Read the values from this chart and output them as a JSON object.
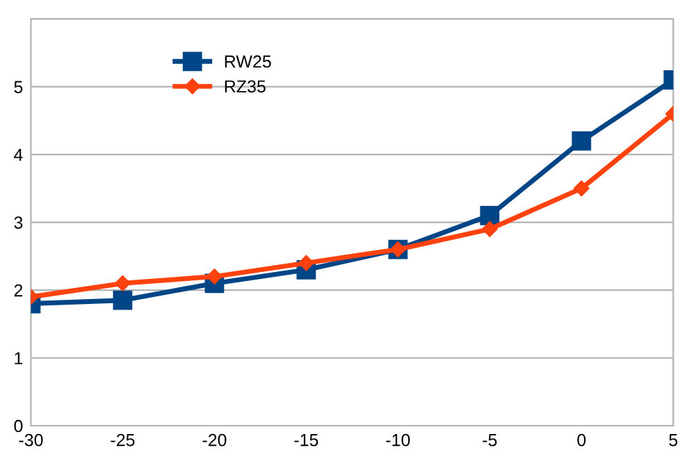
{
  "chart_data": {
    "type": "line",
    "x": [
      -30,
      -25,
      -20,
      -15,
      -10,
      -5,
      0,
      5
    ],
    "series": [
      {
        "name": "RW25",
        "color": "#004586",
        "marker": "square",
        "values": [
          1.8,
          1.85,
          2.1,
          2.3,
          2.6,
          3.1,
          4.2,
          5.1
        ]
      },
      {
        "name": "RZ35",
        "color": "#ff420e",
        "marker": "diamond",
        "values": [
          1.9,
          2.1,
          2.2,
          2.4,
          2.6,
          2.9,
          3.5,
          4.6
        ]
      }
    ],
    "xlim": [
      -30,
      5
    ],
    "xticks": [
      -30,
      -25,
      -20,
      -15,
      -10,
      -5,
      0,
      5
    ],
    "ylim": [
      0,
      6
    ],
    "yticks": [
      0,
      1,
      2,
      3,
      4,
      5,
      {
        "value": 6,
        "label": null
      }
    ],
    "grid": "y",
    "legend": "top left",
    "line_style": "solid"
  }
}
